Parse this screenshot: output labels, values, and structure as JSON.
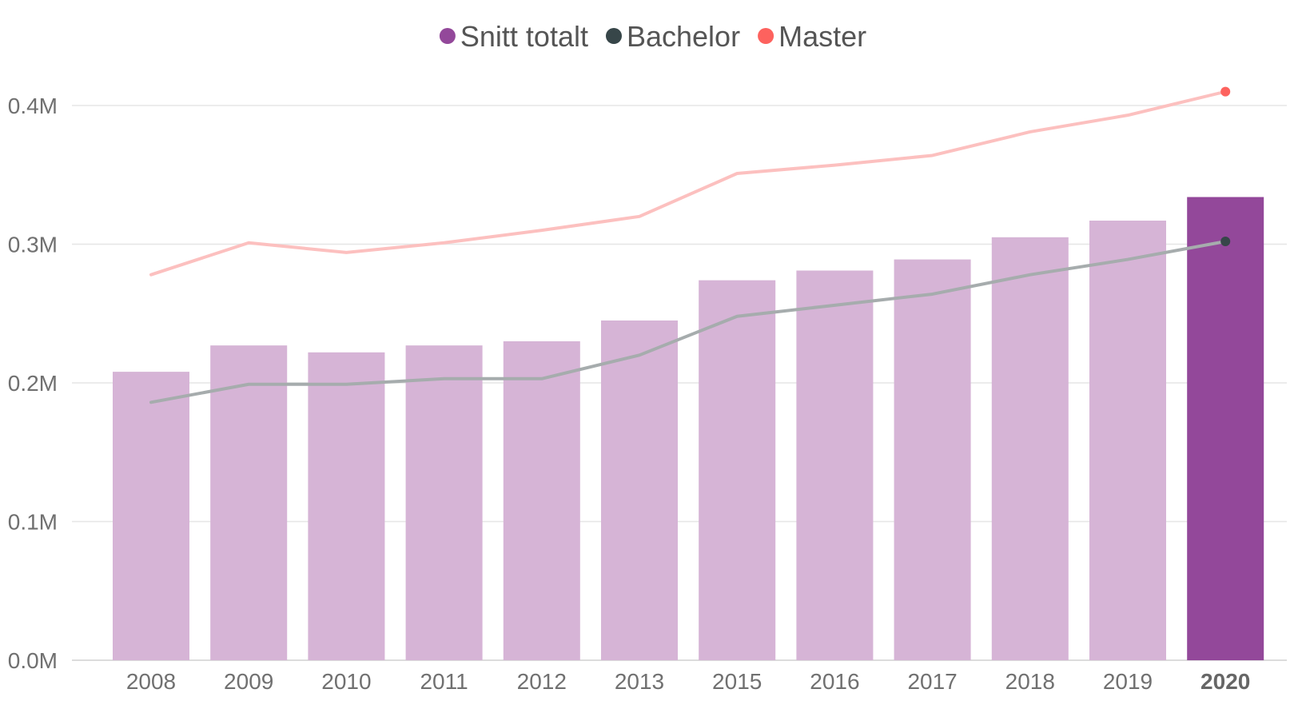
{
  "chart_data": {
    "type": "bar",
    "categories": [
      "2008",
      "2009",
      "2010",
      "2011",
      "2012",
      "2013",
      "2015",
      "2016",
      "2017",
      "2018",
      "2019",
      "2020"
    ],
    "highlight_category": "2020",
    "ylim": [
      0,
      0.4
    ],
    "y_ticks": [
      {
        "value": 0.0,
        "label": "0.0M"
      },
      {
        "value": 0.1,
        "label": "0.1M"
      },
      {
        "value": 0.2,
        "label": "0.2M"
      },
      {
        "value": 0.3,
        "label": "0.3M"
      },
      {
        "value": 0.4,
        "label": "0.4M"
      }
    ],
    "y_unit": "M",
    "grid": true,
    "legend_position": "top-center",
    "series": [
      {
        "name": "Snitt totalt",
        "kind": "bar",
        "color": "#93489a",
        "faded_color": "#d6b4d6",
        "values": [
          0.208,
          0.227,
          0.222,
          0.227,
          0.23,
          0.245,
          0.274,
          0.281,
          0.289,
          0.305,
          0.317,
          0.334
        ]
      },
      {
        "name": "Bachelor",
        "kind": "line",
        "color": "#374649",
        "faded_color": "#a6acad",
        "values": [
          0.186,
          0.199,
          0.199,
          0.203,
          0.203,
          0.22,
          0.248,
          0.256,
          0.264,
          0.278,
          0.289,
          0.302
        ]
      },
      {
        "name": "Master",
        "kind": "line",
        "color": "#fd625e",
        "faded_color": "#fcc0bf",
        "values": [
          0.278,
          0.301,
          0.294,
          0.301,
          0.31,
          0.32,
          0.351,
          0.357,
          0.364,
          0.381,
          0.393,
          0.41
        ]
      }
    ]
  }
}
